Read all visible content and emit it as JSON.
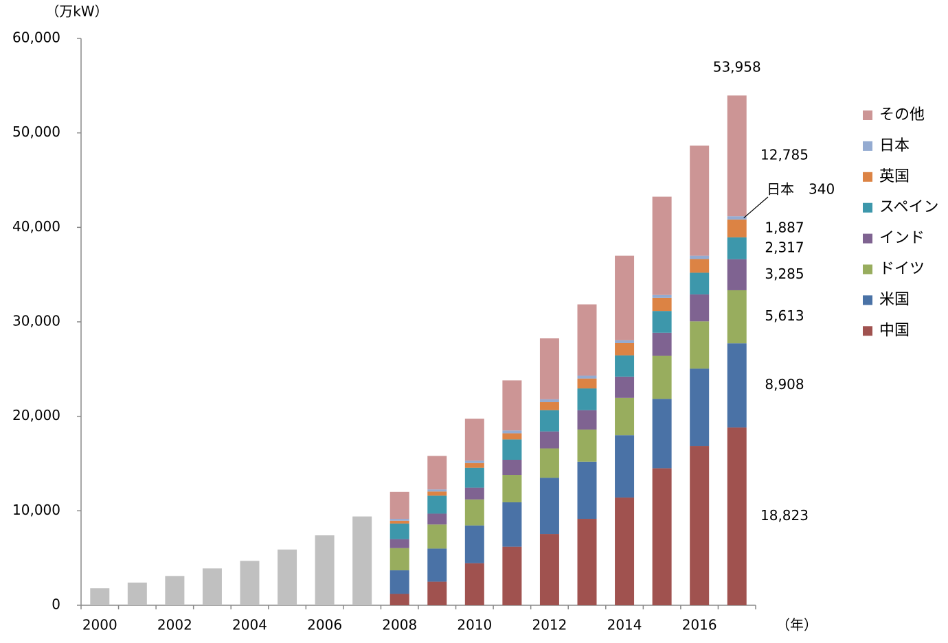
{
  "chart_data": {
    "type": "stacked_bar",
    "y_label": "（万kW）",
    "x_label": "（年）",
    "categories": [
      "2000",
      null,
      "2002",
      null,
      "2004",
      null,
      "2006",
      null,
      "2008",
      null,
      "2010",
      null,
      "2012",
      null,
      "2014",
      null,
      "2016",
      null
    ],
    "ylim": [
      0,
      60000
    ],
    "yticks": [
      0,
      {
        "value": 10000,
        "label": "10,000"
      },
      {
        "value": 20000,
        "label": "20,000"
      },
      {
        "value": 30000,
        "label": "30,000"
      },
      {
        "value": 40000,
        "label": "40,000"
      },
      {
        "value": 50000,
        "label": "50,000"
      },
      {
        "value": 60000,
        "label": "60,000"
      }
    ],
    "series": [
      {
        "color": "#c0c0c0",
        "values": [
          1800,
          2400,
          3100,
          3900,
          4700,
          5900,
          7400,
          9400,
          null,
          null,
          null,
          null,
          null,
          null,
          null,
          null,
          null,
          null
        ]
      },
      {
        "name": "中国",
        "color": "#a0524f",
        "values": [
          null,
          null,
          null,
          null,
          null,
          null,
          null,
          null,
          1200,
          2500,
          4450,
          6200,
          7550,
          9150,
          11400,
          14500,
          16850,
          18823
        ],
        "value_labels": [
          null,
          null,
          null,
          null,
          null,
          null,
          null,
          null,
          null,
          null,
          null,
          null,
          null,
          null,
          null,
          null,
          null,
          "18,823"
        ]
      },
      {
        "name": "米国",
        "color": "#4a72a6",
        "values": [
          null,
          null,
          null,
          null,
          null,
          null,
          null,
          null,
          2500,
          3500,
          4000,
          4700,
          5950,
          6050,
          6600,
          7350,
          8200,
          8908
        ],
        "value_labels": [
          null,
          null,
          null,
          null,
          null,
          null,
          null,
          null,
          null,
          null,
          null,
          null,
          null,
          null,
          null,
          null,
          null,
          "8,908"
        ]
      },
      {
        "name": "ドイツ",
        "color": "#98ad5e",
        "values": [
          null,
          null,
          null,
          null,
          null,
          null,
          null,
          null,
          2350,
          2550,
          2750,
          2900,
          3100,
          3400,
          3950,
          4550,
          5000,
          5613
        ],
        "value_labels": [
          null,
          null,
          null,
          null,
          null,
          null,
          null,
          null,
          null,
          null,
          null,
          null,
          null,
          null,
          null,
          null,
          null,
          "5,613"
        ]
      },
      {
        "name": "インド",
        "color": "#7f6391",
        "values": [
          null,
          null,
          null,
          null,
          null,
          null,
          null,
          null,
          950,
          1150,
          1250,
          1600,
          1800,
          2050,
          2250,
          2450,
          2850,
          3285
        ],
        "value_labels": [
          null,
          null,
          null,
          null,
          null,
          null,
          null,
          null,
          null,
          null,
          null,
          null,
          null,
          null,
          null,
          null,
          null,
          "3,285"
        ]
      },
      {
        "name": "スペイン",
        "color": "#3d97ab",
        "values": [
          null,
          null,
          null,
          null,
          null,
          null,
          null,
          null,
          1650,
          1900,
          2100,
          2150,
          2250,
          2300,
          2250,
          2300,
          2300,
          2317
        ],
        "value_labels": [
          null,
          null,
          null,
          null,
          null,
          null,
          null,
          null,
          null,
          null,
          null,
          null,
          null,
          null,
          null,
          null,
          null,
          "2,317"
        ]
      },
      {
        "name": "英国",
        "color": "#dc8344",
        "values": [
          null,
          null,
          null,
          null,
          null,
          null,
          null,
          null,
          300,
          440,
          500,
          650,
          850,
          1050,
          1300,
          1400,
          1450,
          1887
        ],
        "value_labels": [
          null,
          null,
          null,
          null,
          null,
          null,
          null,
          null,
          null,
          null,
          null,
          null,
          null,
          null,
          null,
          null,
          null,
          "1,887"
        ]
      },
      {
        "name": "日本",
        "color": "#94abd1",
        "values": [
          null,
          null,
          null,
          null,
          null,
          null,
          null,
          null,
          200,
          220,
          250,
          300,
          300,
          300,
          300,
          300,
          350,
          340
        ]
      },
      {
        "name": "その他",
        "color": "#cc9595",
        "values": [
          null,
          null,
          null,
          null,
          null,
          null,
          null,
          null,
          2850,
          3550,
          4450,
          5300,
          6450,
          7550,
          8950,
          10400,
          11650,
          12785
        ],
        "value_labels": [
          null,
          null,
          null,
          null,
          null,
          null,
          null,
          null,
          null,
          null,
          null,
          null,
          null,
          null,
          null,
          null,
          null,
          "12,785"
        ]
      }
    ],
    "japan_annotation": {
      "text": "日本",
      "label": "340"
    },
    "total": {
      "value": 53958,
      "label": "53,958"
    }
  }
}
